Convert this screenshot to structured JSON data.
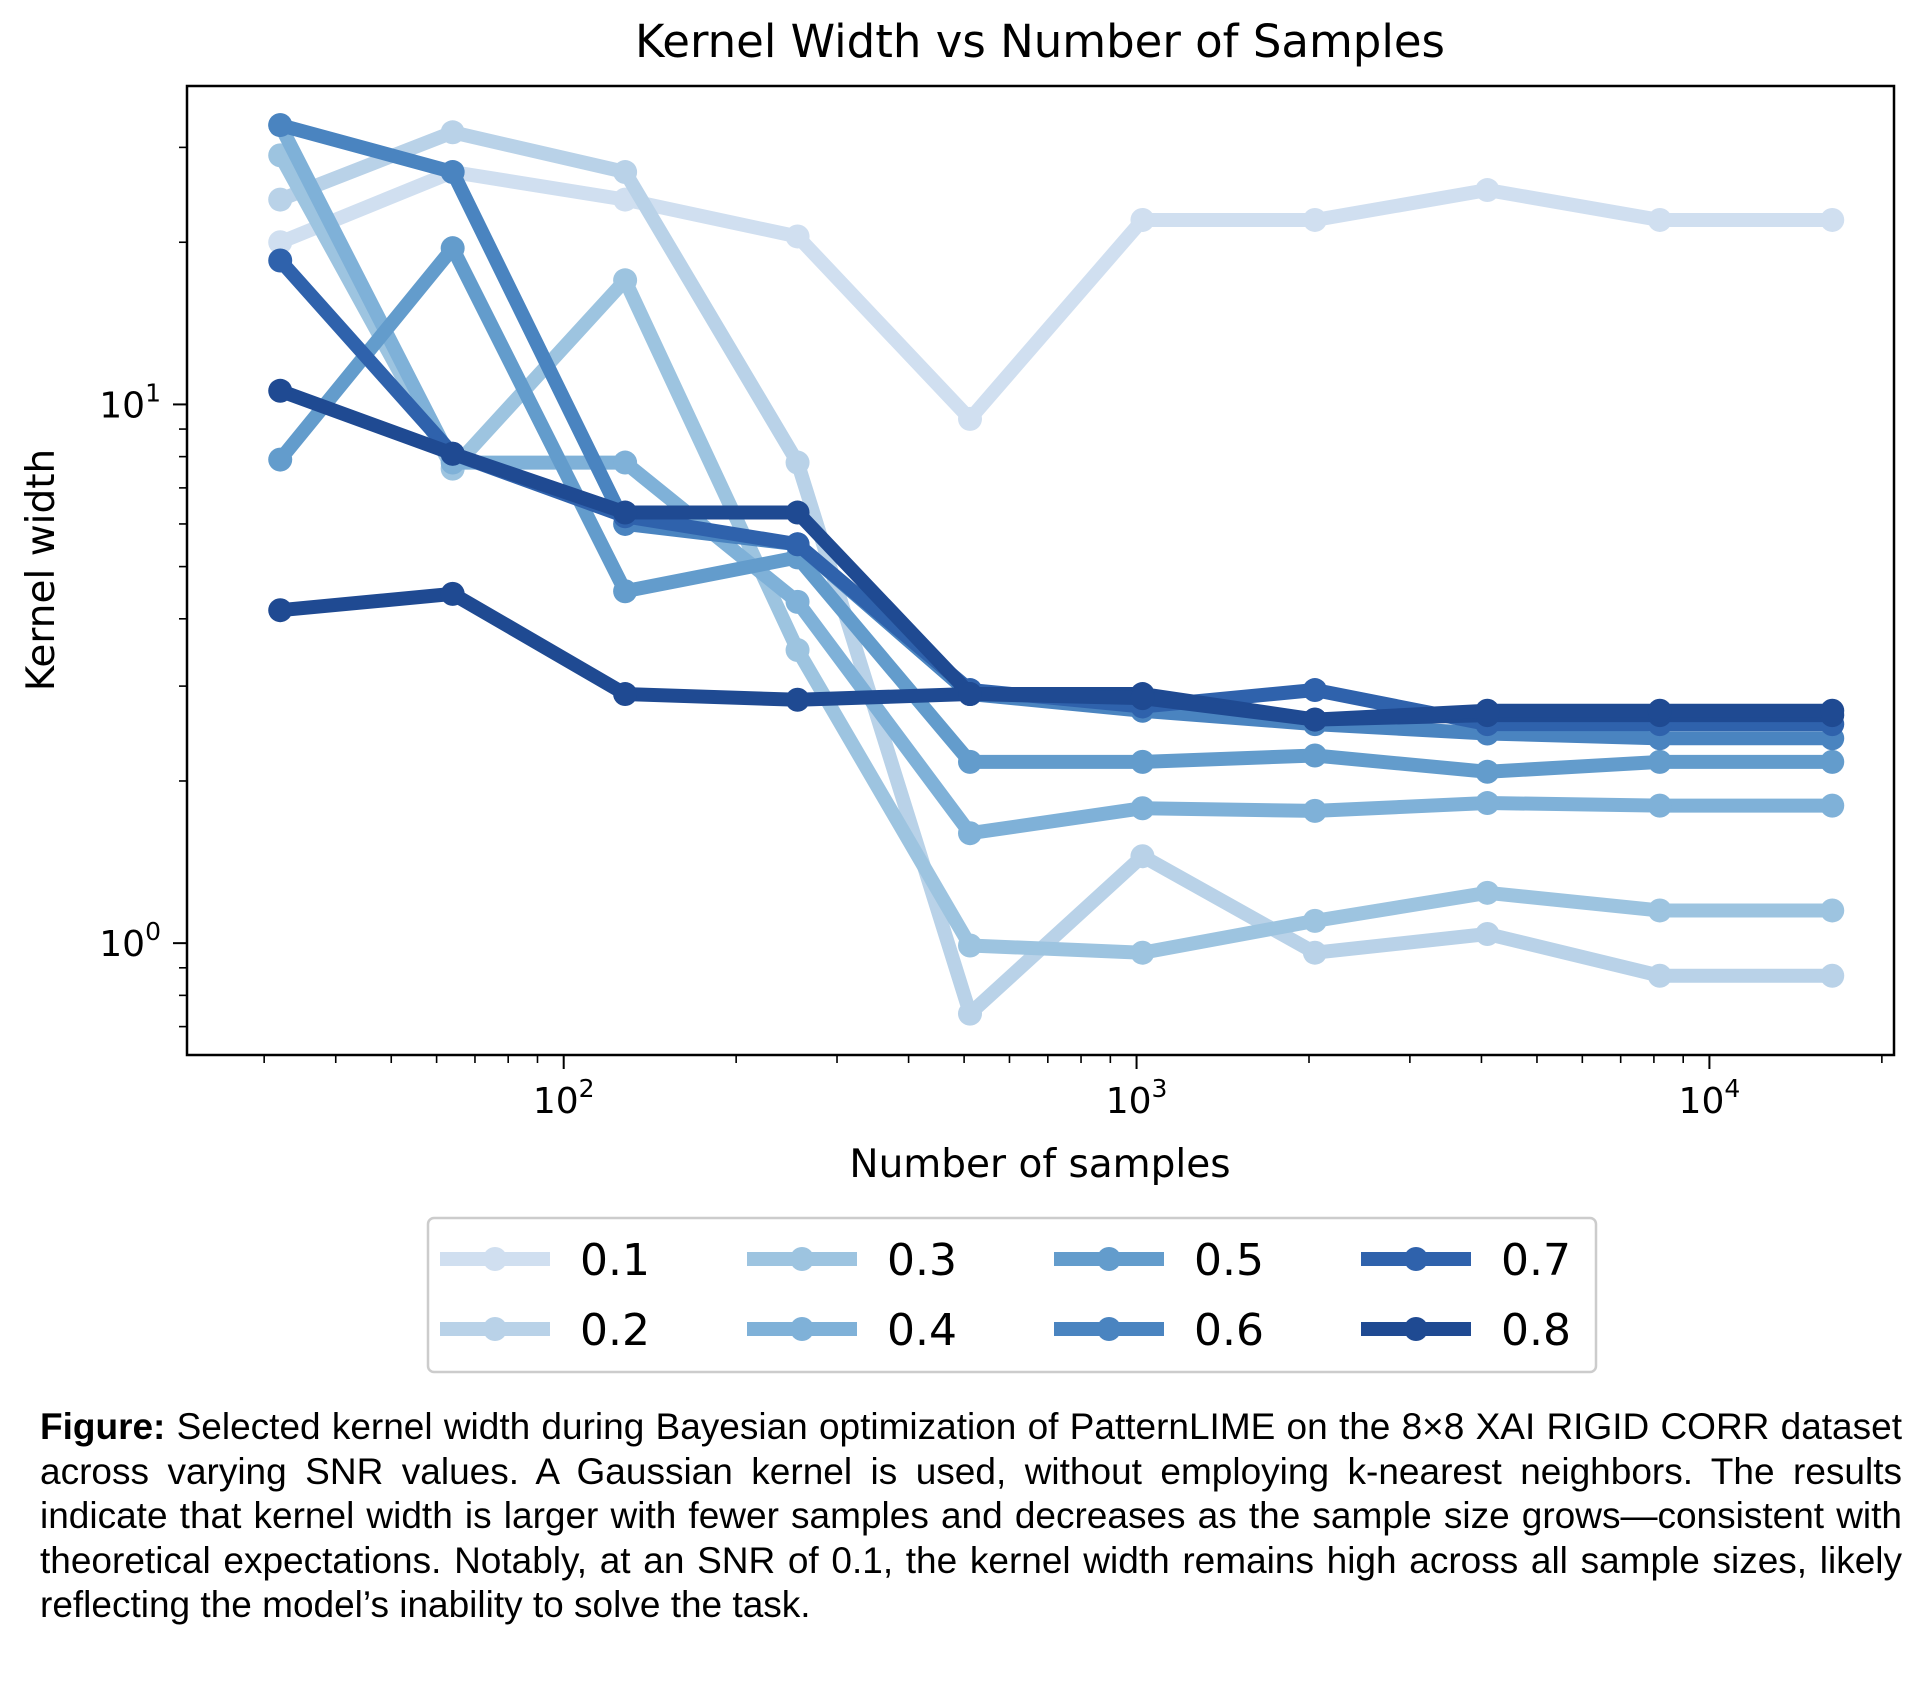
{
  "chart_data": {
    "type": "line",
    "title": "Kernel Width vs Number of Samples",
    "xlabel": "Number of samples",
    "ylabel": "Kernel width",
    "xscale": "log",
    "yscale": "log",
    "x": [
      32,
      64,
      128,
      256,
      512,
      1024,
      2048,
      4096,
      8192,
      16384
    ],
    "xlim": [
      22,
      21000
    ],
    "ylim": [
      0.62,
      39
    ],
    "x_ticks": [
      {
        "value": 100,
        "base": "10",
        "exp": "2"
      },
      {
        "value": 1000,
        "base": "10",
        "exp": "3"
      },
      {
        "value": 10000,
        "base": "10",
        "exp": "4"
      }
    ],
    "y_ticks": [
      {
        "value": 1,
        "base": "10",
        "exp": "0"
      },
      {
        "value": 10,
        "base": "10",
        "exp": "1"
      }
    ],
    "legend_position": "bottom-center, 4 columns",
    "series": [
      {
        "name": "0.1",
        "color": "#d0dff0",
        "values": [
          20,
          27,
          24,
          20.5,
          9.4,
          22,
          22,
          25,
          22,
          22
        ]
      },
      {
        "name": "0.2",
        "color": "#b9d2e8",
        "values": [
          24,
          32,
          27,
          7.8,
          0.74,
          1.45,
          0.96,
          1.04,
          0.87,
          0.87
        ]
      },
      {
        "name": "0.3",
        "color": "#9dc4e0",
        "values": [
          29,
          7.6,
          17,
          3.5,
          0.99,
          0.96,
          1.1,
          1.24,
          1.15,
          1.15
        ]
      },
      {
        "name": "0.4",
        "color": "#7fb1d8",
        "values": [
          33,
          7.8,
          7.8,
          4.3,
          1.6,
          1.78,
          1.76,
          1.82,
          1.8,
          1.8
        ]
      },
      {
        "name": "0.5",
        "color": "#639ccc",
        "values": [
          7.9,
          19.5,
          4.5,
          5.2,
          2.17,
          2.17,
          2.23,
          2.08,
          2.17,
          2.17
        ]
      },
      {
        "name": "0.6",
        "color": "#4a84c0",
        "values": [
          33,
          27,
          6.0,
          5.5,
          2.9,
          2.7,
          2.55,
          2.45,
          2.4,
          2.4
        ]
      },
      {
        "name": "0.7",
        "color": "#2f62ac",
        "values": [
          18.5,
          8.1,
          6.2,
          5.5,
          2.95,
          2.75,
          2.95,
          2.55,
          2.55,
          2.55
        ]
      },
      {
        "name": "0.8",
        "color": "#1f4a92",
        "values": [
          10.6,
          8.1,
          6.3,
          6.3,
          2.9,
          2.9,
          2.6,
          2.65,
          2.65,
          2.65
        ]
      },
      {
        "name": "",
        "color": "#1f4a92",
        "values": [
          4.15,
          4.45,
          2.9,
          2.83,
          2.9,
          2.85,
          2.6,
          2.7,
          2.7,
          2.7
        ]
      }
    ]
  },
  "caption": {
    "label": "Figure:",
    "text": " Selected kernel width during Bayesian optimization of PatternLIME on the 8×8 XAI RIGID CORR dataset across varying SNR values. A Gaussian kernel is used, without employing k-nearest neighbors. The results indicate that kernel width is larger with fewer samples and decreases as the sample size grows—consistent with theoretical expectations. Notably, at an SNR of 0.1, the kernel width remains high across all sample sizes, likely reflecting the model’s inability to  solve the task."
  }
}
